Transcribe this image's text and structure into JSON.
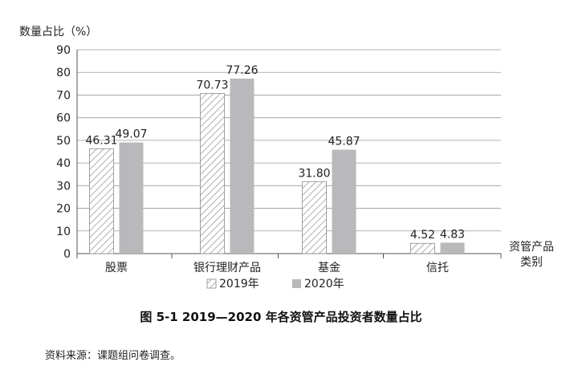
{
  "chart_data": {
    "type": "bar",
    "ylabel": "数量占比（%）",
    "xlabel": "资管产品类别",
    "categories": [
      "股票",
      "银行理财产品",
      "基金",
      "信托"
    ],
    "series": [
      {
        "name": "2019年",
        "values": [
          46.31,
          70.73,
          31.8,
          4.52
        ],
        "value_labels": [
          "46.31",
          "70.73",
          "31.80",
          "4.52"
        ],
        "fill": "hatched"
      },
      {
        "name": "2020年",
        "values": [
          49.07,
          77.26,
          45.87,
          4.83
        ],
        "value_labels": [
          "49.07",
          "77.26",
          "45.87",
          "4.83"
        ],
        "fill": "solid"
      }
    ],
    "ylim": [
      0,
      90
    ],
    "yticks": [
      0,
      10,
      20,
      30,
      40,
      50,
      60,
      70,
      80,
      90
    ],
    "grid": true,
    "legend_position": "bottom-center",
    "colors": {
      "series_2020": "#b9b9bb",
      "hatch_2019": "#9a9a9a",
      "grid": "#9a9a9a",
      "axis": "#555555"
    }
  },
  "figure": {
    "caption": "图 5-1   2019—2020 年各资管产品投资者数量占比",
    "source": "资料来源：课题组问卷调查。"
  }
}
